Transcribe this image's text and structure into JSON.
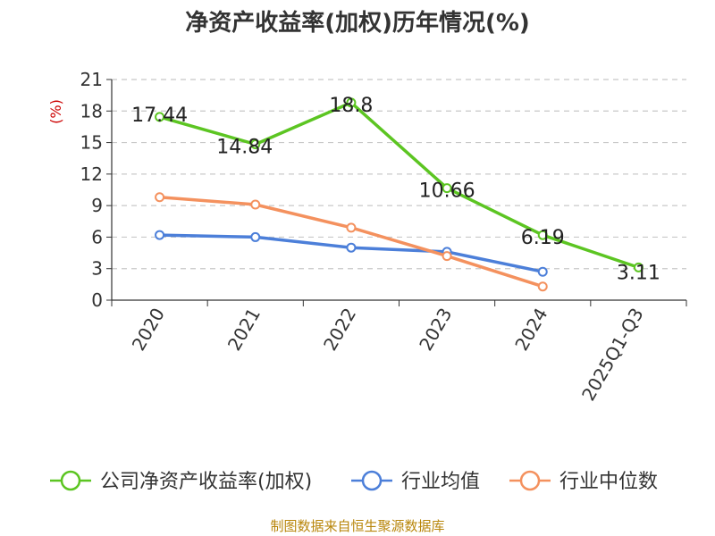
{
  "chart_data": {
    "type": "line",
    "title": "净资产收益率(加权)历年情况(%)",
    "ylabel": "(%)",
    "xlabel": "",
    "categories": [
      "2020",
      "2021",
      "2022",
      "2023",
      "2024",
      "2025Q1-Q3"
    ],
    "ylim": [
      0,
      21
    ],
    "yticks": [
      0,
      3,
      6,
      9,
      12,
      15,
      18,
      21
    ],
    "grid": true,
    "legend_position": "bottom",
    "series": [
      {
        "name": "公司净资产收益率(加权)",
        "color": "#5cc522",
        "values": [
          17.44,
          14.84,
          18.8,
          10.66,
          6.19,
          3.11
        ],
        "labels": [
          "17.44",
          "14.84",
          "18.8",
          "10.66",
          "6.19",
          "3.11"
        ]
      },
      {
        "name": "行业均值",
        "color": "#4c7fd9",
        "values": [
          6.2,
          6.0,
          5.0,
          4.6,
          2.7,
          null
        ]
      },
      {
        "name": "行业中位数",
        "color": "#f4915e",
        "values": [
          9.8,
          9.1,
          6.9,
          4.2,
          1.3,
          null
        ]
      }
    ],
    "source": "制图数据来自恒生聚源数据库"
  }
}
